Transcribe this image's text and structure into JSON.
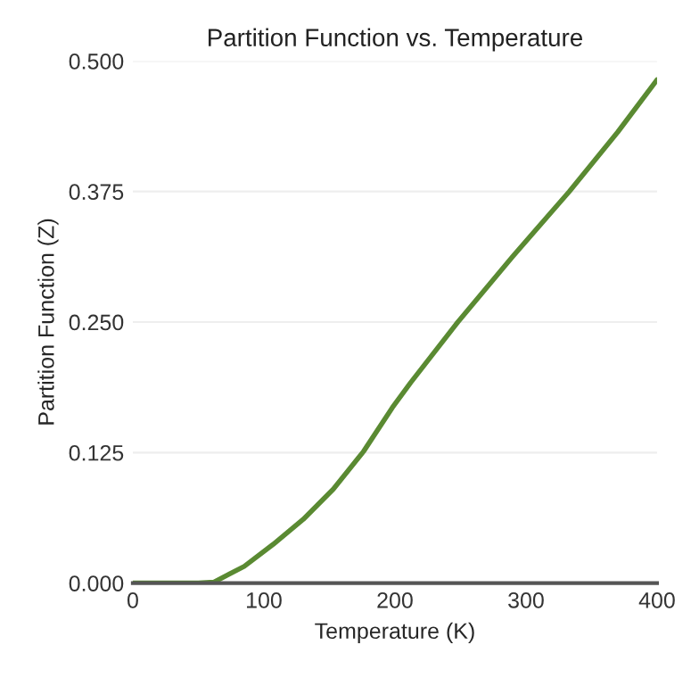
{
  "chart_data": {
    "type": "line",
    "title": "Partition Function vs. Temperature",
    "xlabel": "Temperature (K)",
    "ylabel": "Partition Function (Z)",
    "x": [
      0,
      20,
      40,
      50,
      62,
      85,
      107,
      130,
      153,
      176,
      198,
      212,
      248,
      290,
      333,
      370,
      400
    ],
    "series": [
      {
        "color": "#5a8a32",
        "values": [
          0,
          0,
          0,
          0,
          0.001,
          0.016,
          0.037,
          0.061,
          0.09,
          0.126,
          0.168,
          0.192,
          0.25,
          0.313,
          0.375,
          0.432,
          0.482
        ]
      }
    ],
    "xlim": [
      0,
      400
    ],
    "xticks": [
      0,
      100,
      200,
      300,
      400
    ],
    "ylim": [
      0,
      0.5
    ],
    "yticks": [
      {
        "value": 0,
        "label": "0.000"
      },
      {
        "value": 0.125,
        "label": "0.125"
      },
      {
        "value": 0.25,
        "label": "0.250"
      },
      {
        "value": 0.375,
        "label": "0.375"
      },
      {
        "value": 0.5,
        "label": "0.500"
      }
    ],
    "grid": "y"
  }
}
